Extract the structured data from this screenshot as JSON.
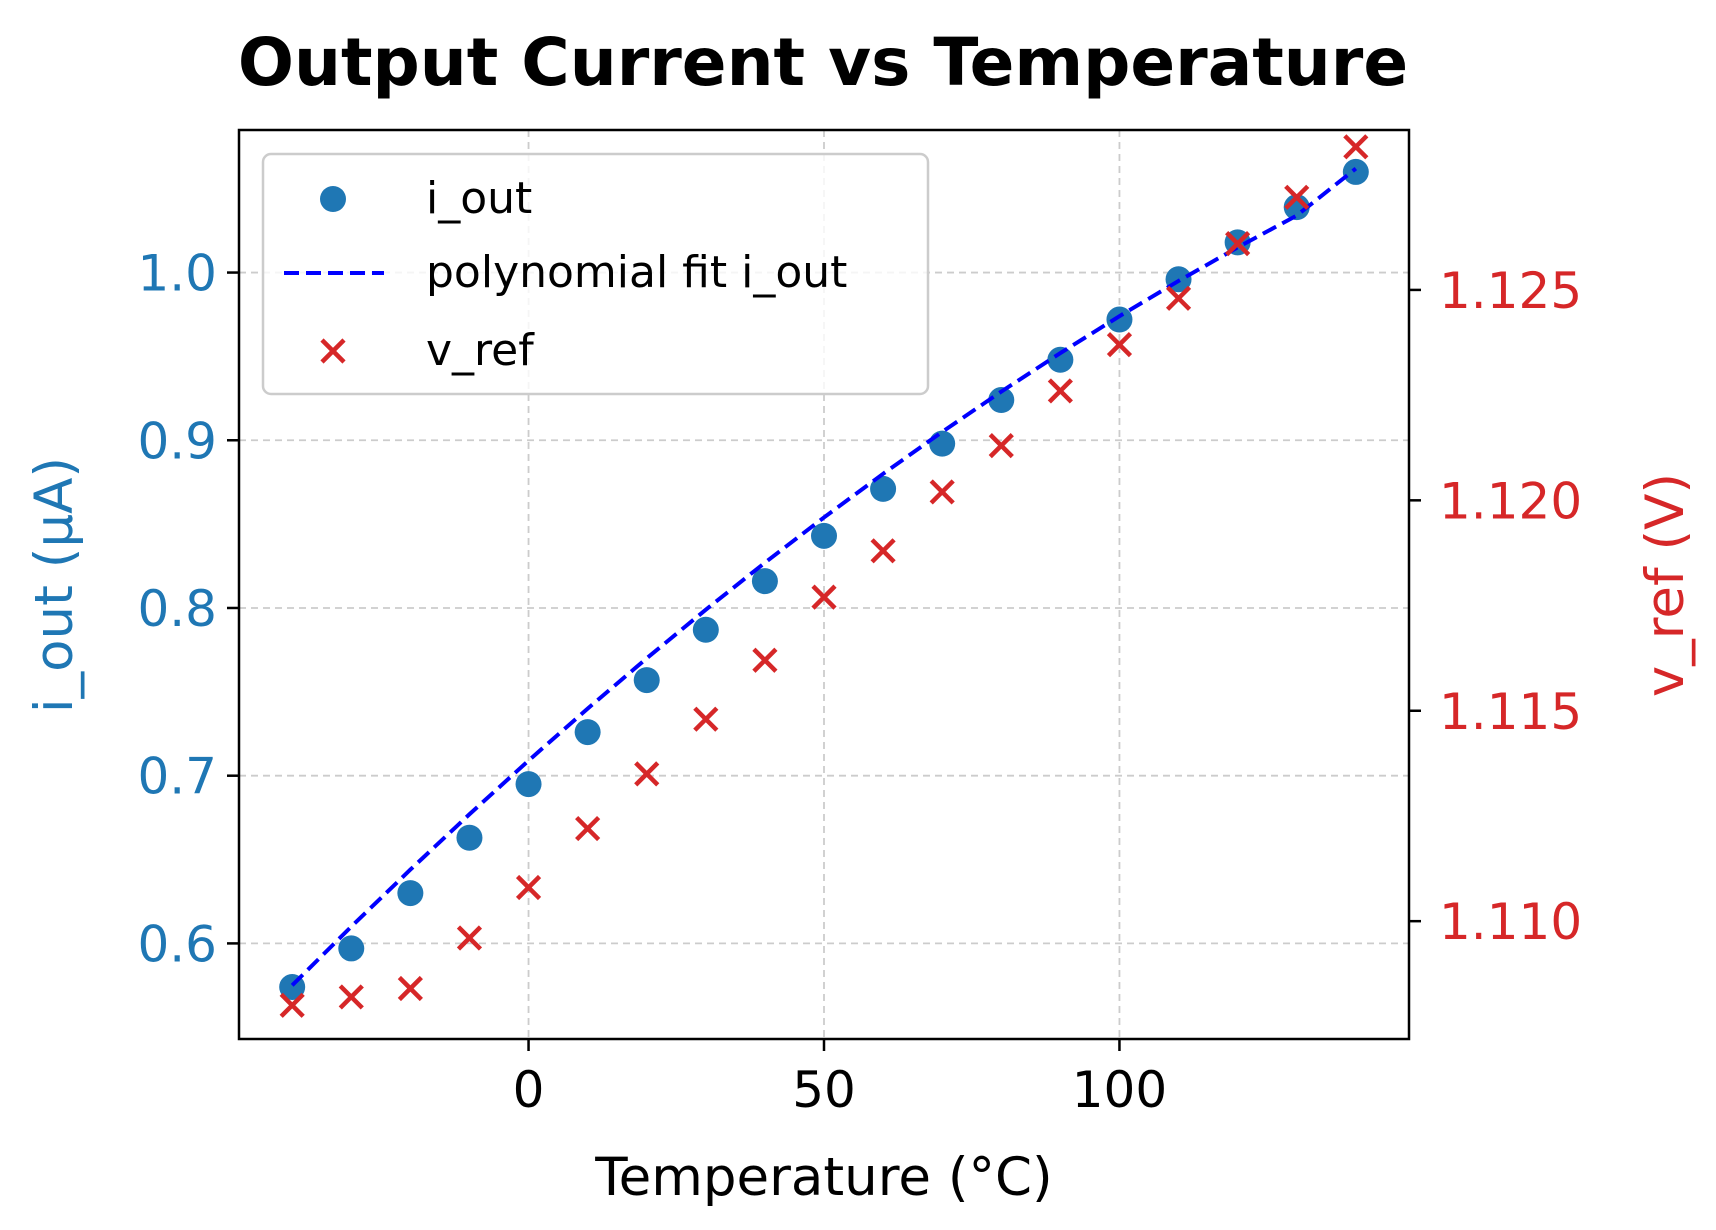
{
  "chart_data": {
    "type": "scatter",
    "title": "Output Current vs Temperature",
    "xlabel": "Temperature (°C)",
    "ylabel_left": "i_out (µA)",
    "ylabel_right": "v_ref (V)",
    "xlim": [
      -49,
      149
    ],
    "ylim_left": [
      0.543,
      1.085
    ],
    "ylim_right": [
      1.1072,
      1.1288
    ],
    "x_ticks": [
      0,
      50,
      100
    ],
    "y_ticks_left": [
      0.6,
      0.7,
      0.8,
      0.9,
      1.0
    ],
    "y_ticks_right": [
      1.11,
      1.115,
      1.12,
      1.125
    ],
    "y_tick_labels_left": [
      "0.6",
      "0.7",
      "0.8",
      "0.9",
      "1.0"
    ],
    "y_tick_labels_right": [
      "1.110",
      "1.115",
      "1.120",
      "1.125"
    ],
    "grid": true,
    "legend_position": "top-left",
    "x": [
      -40,
      -30,
      -20,
      -10,
      0,
      10,
      20,
      30,
      40,
      50,
      60,
      70,
      80,
      90,
      100,
      110,
      120,
      130,
      140
    ],
    "series": [
      {
        "name": "i_out",
        "axis": "left",
        "style": "scatter-circle",
        "color": "#1f77b4",
        "values": [
          0.574,
          0.597,
          0.63,
          0.663,
          0.695,
          0.726,
          0.757,
          0.787,
          0.816,
          0.843,
          0.871,
          0.898,
          0.924,
          0.948,
          0.972,
          0.996,
          1.018,
          1.039,
          1.06
        ]
      },
      {
        "name": "polynomial fit i_out",
        "axis": "left",
        "style": "dashed-line",
        "color": "#0000ff",
        "values": [
          0.575,
          0.61,
          0.644,
          0.677,
          0.709,
          0.74,
          0.77,
          0.799,
          0.827,
          0.854,
          0.88,
          0.905,
          0.929,
          0.952,
          0.974,
          0.995,
          1.015,
          1.034,
          1.062
        ]
      },
      {
        "name": "v_ref",
        "axis": "right",
        "style": "scatter-x",
        "color": "#d62728",
        "values": [
          1.108,
          1.1082,
          1.1084,
          1.1096,
          1.1108,
          1.1122,
          1.1135,
          1.1148,
          1.1162,
          1.1177,
          1.1188,
          1.1202,
          1.1213,
          1.1226,
          1.1237,
          1.1248,
          1.1261,
          1.1272,
          1.1284
        ]
      }
    ],
    "colors": {
      "left_axis": "#1f77b4",
      "right_axis": "#d62728",
      "grid": "#cccccc"
    }
  }
}
